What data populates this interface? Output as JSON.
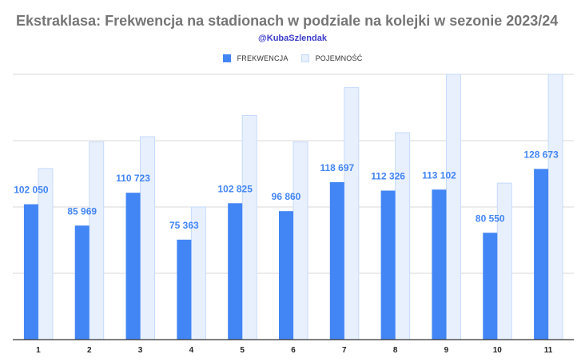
{
  "chart_data": {
    "type": "bar",
    "title": "Ekstraklasa: Frekwencja na stadionach w podziale na kolejki w sezonie 2023/24",
    "subtitle": "@KubaSzlendak",
    "xlabel": "",
    "ylabel": "",
    "legend_position": "top",
    "grid": true,
    "ylim": [
      0,
      200000
    ],
    "categories": [
      "1",
      "2",
      "3",
      "4",
      "5",
      "6",
      "7",
      "8",
      "9",
      "10",
      "11"
    ],
    "series": [
      {
        "name": "FREKWENCJA",
        "color": "#4285f4",
        "values": [
          102050,
          85969,
          110723,
          75363,
          102825,
          96860,
          118697,
          112326,
          113102,
          80550,
          128673
        ],
        "labels": [
          "102 050",
          "85 969",
          "110 723",
          "75 363",
          "102 825",
          "96 860",
          "118 697",
          "112 326",
          "113 102",
          "80 550",
          "128 673"
        ]
      },
      {
        "name": "POJEMNOŚĆ",
        "color": "#e8f0fe",
        "border_color": "#c6dafc",
        "values": [
          129000,
          149000,
          153000,
          100000,
          169000,
          149000,
          190000,
          156000,
          200000,
          118000,
          200000
        ]
      }
    ]
  }
}
